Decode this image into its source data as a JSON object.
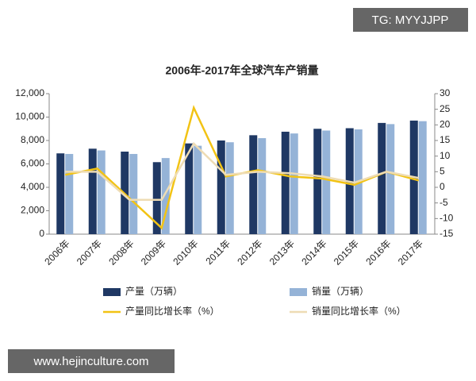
{
  "chart_data": {
    "type": "bar_line",
    "title": "2006年-2017年全球汽车产销量",
    "categories": [
      "2006年",
      "2007年",
      "2008年",
      "2009年",
      "2010年",
      "2011年",
      "2012年",
      "2013年",
      "2014年",
      "2015年",
      "2016年",
      "2017年"
    ],
    "series": [
      {
        "name": "产量（万辆）",
        "type": "bar",
        "color": "#1f3864",
        "values": [
          6900,
          7300,
          7050,
          6150,
          7750,
          8000,
          8450,
          8750,
          9000,
          9050,
          9500,
          9700
        ]
      },
      {
        "name": "销量（万辆）",
        "type": "bar",
        "color": "#95b3d7",
        "values": [
          6850,
          7150,
          6850,
          6500,
          7550,
          7850,
          8200,
          8600,
          8850,
          8950,
          9400,
          9650
        ]
      },
      {
        "name": "产量同比增长率（%）",
        "type": "line",
        "axis": "y2",
        "color": "#f2c314",
        "values": [
          4,
          6,
          -3.5,
          -13,
          25.5,
          3.5,
          5.5,
          3.5,
          2.8,
          0.8,
          5,
          2.2
        ]
      },
      {
        "name": "销量同比增长率（%）",
        "type": "line",
        "axis": "y2",
        "color": "#eedcb4",
        "values": [
          5,
          5,
          -4,
          -4,
          14,
          4,
          5,
          4.5,
          3.5,
          1.5,
          5,
          3
        ]
      }
    ],
    "ylim": [
      0,
      12000
    ],
    "yticks": [
      0,
      {
        "value": 2000,
        "label": "2,000"
      },
      {
        "value": 4000,
        "label": "4,000"
      },
      {
        "value": 6000,
        "label": "6,000"
      },
      {
        "value": 8000,
        "label": "8,000"
      },
      {
        "value": 10000,
        "label": "10,000"
      },
      {
        "value": 12000,
        "label": "12,000"
      }
    ],
    "y2lim": [
      -15,
      30
    ],
    "y2ticks": [
      -15,
      -10,
      -5,
      0,
      5,
      10,
      15,
      20,
      25,
      30
    ],
    "grid": false
  },
  "overlay": {
    "top_right": "TG: MYYJJPP",
    "bottom_left": "www.hejinculture.com"
  }
}
